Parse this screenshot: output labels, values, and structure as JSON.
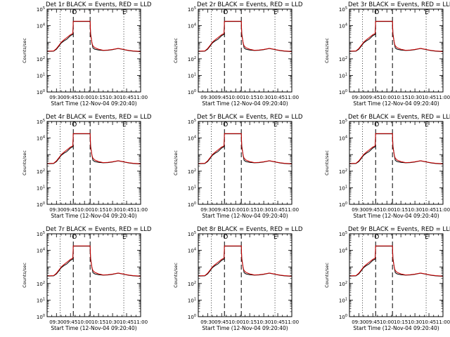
{
  "chart_data": {
    "type": "line",
    "layout": "3x3 grid",
    "panel_titles": [
      "Det 1r BLACK = Events, RED = LLD",
      "Det 2r BLACK = Events, RED = LLD",
      "Det 3r BLACK = Events, RED = LLD",
      "Det 4r BLACK = Events, RED = LLD",
      "Det 5r BLACK = Events, RED = LLD",
      "Det 6r BLACK = Events, RED = LLD",
      "Det 7r BLACK = Events, RED = LLD",
      "Det 8r BLACK = Events, RED = LLD",
      "Det 9r BLACK = Events, RED = LLD"
    ],
    "xlabel": "Start Time (12-Nov-04 09:20:40)",
    "ylabel": "Counts/sec",
    "x_tick_labels": [
      "09:30",
      "09:45",
      "10:00",
      "10:15",
      "10:30",
      "10:45",
      "11:00"
    ],
    "y_tick_labels": [
      {
        "base": "10",
        "exp": "0"
      },
      {
        "base": "10",
        "exp": "1"
      },
      {
        "base": "10",
        "exp": "2"
      },
      {
        "base": "10",
        "exp": "4"
      },
      {
        "base": "10",
        "exp": "5"
      }
    ],
    "y_scale": "log",
    "ylim": [
      1,
      100000
    ],
    "x_range_minutes_after_0920": [
      0,
      100
    ],
    "x_tick_minutes_after_0920": [
      10,
      25,
      40,
      55,
      70,
      85,
      100
    ],
    "y_tick_decades": [
      0,
      1,
      2,
      4,
      5
    ],
    "vertical_markers": {
      "dotted_minutes_after_0920": [
        14,
        82
      ],
      "dashed_minutes_after_0920": [
        28,
        46
      ]
    },
    "marker_labels": [
      {
        "text": "O",
        "minute": 28
      },
      {
        "text": "E",
        "minute": 82
      }
    ],
    "series": [
      {
        "name": "Events",
        "color": "#000000",
        "x": [
          0,
          7,
          10,
          13,
          15,
          18,
          21,
          25,
          27.5,
          28,
          46,
          46.5,
          48,
          49,
          51,
          55,
          60,
          65,
          70,
          73,
          76,
          80,
          84,
          88,
          92,
          96,
          100
        ],
        "y": [
          280,
          290,
          380,
          620,
          900,
          1200,
          1500,
          2500,
          3000,
          18000,
          18000,
          3500,
          900,
          450,
          380,
          340,
          320,
          330,
          360,
          390,
          420,
          380,
          340,
          310,
          290,
          280,
          270
        ]
      },
      {
        "name": "LLD",
        "color": "#cc0000",
        "x": [
          0,
          7,
          10,
          13,
          15,
          18,
          21,
          25,
          27.5,
          28,
          46,
          46.5,
          48,
          49,
          51,
          55,
          60,
          65,
          70,
          73,
          76,
          80,
          84,
          88,
          92,
          96,
          100
        ],
        "y": [
          290,
          300,
          420,
          700,
          1000,
          1400,
          1900,
          2900,
          3400,
          18500,
          18500,
          3000,
          900,
          600,
          470,
          380,
          330,
          340,
          370,
          400,
          430,
          390,
          350,
          320,
          300,
          290,
          280
        ]
      }
    ]
  }
}
